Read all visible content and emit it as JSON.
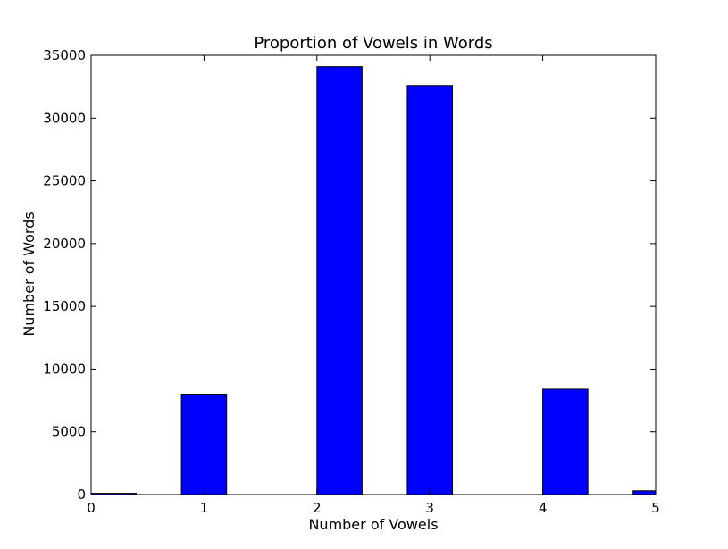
{
  "chart_data": {
    "type": "bar",
    "title": "Proportion of Vowels in Words",
    "xlabel": "Number of Vowels",
    "ylabel": "Number of Words",
    "x_ticks": [
      "0",
      "1",
      "2",
      "3",
      "4",
      "5"
    ],
    "y_ticks": [
      "0",
      "5000",
      "10000",
      "15000",
      "20000",
      "25000",
      "30000",
      "35000"
    ],
    "xlim": [
      0,
      5
    ],
    "ylim": [
      0,
      35000
    ],
    "grid": false,
    "legend": "none",
    "bar_color": "#0000ff",
    "bars": [
      {
        "x_start": 0.0,
        "x_end": 0.4,
        "value": 100
      },
      {
        "x_start": 0.8,
        "x_end": 1.2,
        "value": 8000
      },
      {
        "x_start": 2.0,
        "x_end": 2.4,
        "value": 34100
      },
      {
        "x_start": 2.8,
        "x_end": 3.2,
        "value": 32600
      },
      {
        "x_start": 4.0,
        "x_end": 4.4,
        "value": 8400
      },
      {
        "x_start": 4.8,
        "x_end": 5.2,
        "value": 300
      }
    ]
  }
}
